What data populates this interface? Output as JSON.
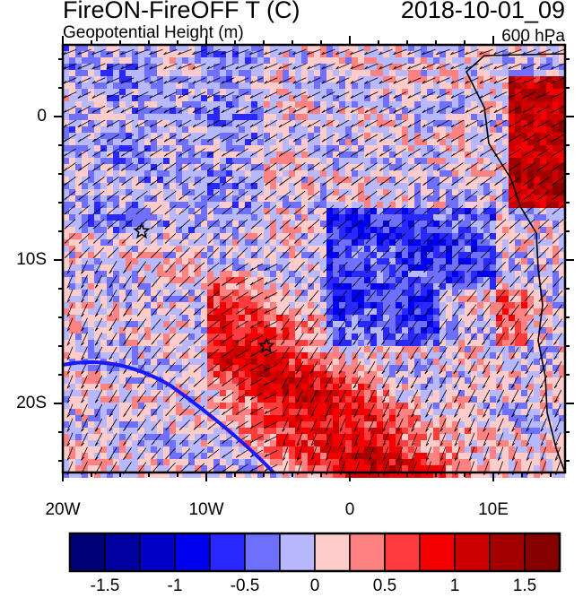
{
  "header": {
    "title": "FireON-FireOFF T (C)",
    "datetime": "2018-10-01_09",
    "subtitle": "Geopotential Height (m)",
    "level": "600 hPa"
  },
  "map": {
    "lon_range": [
      -20,
      15
    ],
    "lat_range": [
      -24.8,
      5
    ],
    "x_ticks": [
      {
        "lon": -20,
        "label": "20W"
      },
      {
        "lon": -10,
        "label": "10W"
      },
      {
        "lon": 0,
        "label": "0"
      },
      {
        "lon": 10,
        "label": "10E"
      }
    ],
    "y_ticks": [
      {
        "lat": 0,
        "label": "0"
      },
      {
        "lat": -10,
        "label": "10S"
      },
      {
        "lat": -20,
        "label": "20S"
      }
    ],
    "markers": [
      {
        "name": "star",
        "lon": -14.5,
        "lat": -8
      },
      {
        "name": "star",
        "lon": -5.8,
        "lat": -16
      }
    ],
    "contour_color": "#1a1aff"
  },
  "colorbar": {
    "colors": [
      "#000078",
      "#0000a0",
      "#0000c8",
      "#0000f0",
      "#2828ff",
      "#7070ff",
      "#b8b8ff",
      "#ffcccc",
      "#ff8282",
      "#ff3c3c",
      "#f50000",
      "#cd0000",
      "#a50000",
      "#870000"
    ],
    "labels": [
      {
        "value": -1.5,
        "text": "-1.5"
      },
      {
        "value": -1,
        "text": "-1"
      },
      {
        "value": -0.5,
        "text": "-0.5"
      },
      {
        "value": 0,
        "text": "0"
      },
      {
        "value": 0.5,
        "text": "0.5"
      },
      {
        "value": 1,
        "text": "1"
      },
      {
        "value": 1.5,
        "text": "1.5"
      }
    ],
    "levels": [
      -1.75,
      -1.5,
      -1.25,
      -1,
      -0.75,
      -0.5,
      -0.25,
      0,
      0.25,
      0.5,
      0.75,
      1,
      1.25,
      1.5,
      1.75
    ]
  }
}
